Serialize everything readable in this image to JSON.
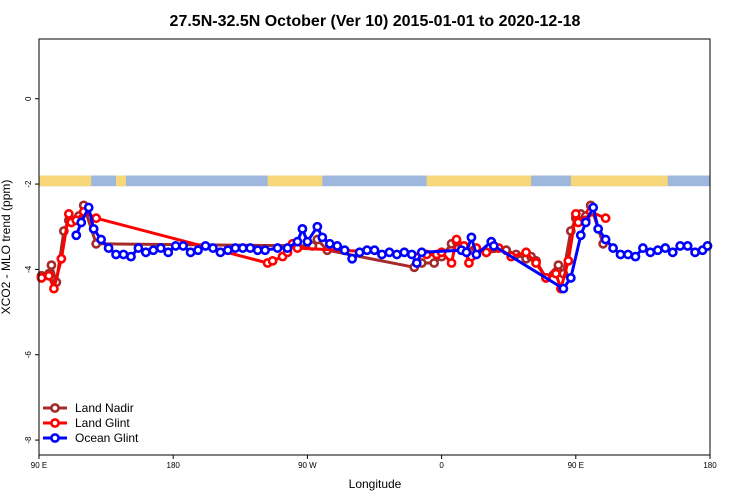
{
  "chart_data": {
    "type": "line",
    "title": "27.5N-32.5N October (Ver 10)   2015-01-01 to 2020-12-18",
    "xlabel": "Longitude",
    "ylabel": "XCO2 - MLO trend (ppm)",
    "xlim": [
      -90,
      180
    ],
    "ylim": [
      -8.35,
      1.4
    ],
    "x_ticks": [
      {
        "value": -90,
        "label": "90 E"
      },
      {
        "value": -36,
        "label": "180"
      },
      {
        "value": 18,
        "label": "90 W"
      },
      {
        "value": 72,
        "label": "0"
      },
      {
        "value": 126,
        "label": "90 E"
      },
      {
        "value": 180,
        "label": "180"
      }
    ],
    "y_ticks": [
      {
        "value": 0,
        "label": "0"
      },
      {
        "value": -2,
        "label": "-2"
      },
      {
        "value": -4,
        "label": "-4"
      },
      {
        "value": -6,
        "label": "-6"
      },
      {
        "value": -8,
        "label": "-8"
      }
    ],
    "surface_band": {
      "y_range": [
        -1.8,
        -2.05
      ],
      "ocean_color": "#9db7dd",
      "land_color": "#f7d77a",
      "land_segments": [
        [
          -90,
          -69
        ],
        [
          -59,
          -55
        ],
        [
          2,
          24
        ],
        [
          66,
          108
        ],
        [
          124,
          163
        ]
      ]
    },
    "legend_position": "bottom-left",
    "series": [
      {
        "name": "Land Nadir",
        "color": "#a52a2a",
        "points": [
          [
            -89,
            -4.15
          ],
          [
            -86,
            -4.1
          ],
          [
            -85,
            -3.9
          ],
          [
            -83,
            -4.3
          ],
          [
            -80,
            -3.1
          ],
          [
            -78,
            -2.85
          ],
          [
            -76,
            -2.85
          ],
          [
            -74,
            -2.75
          ],
          [
            -72,
            -2.5
          ],
          [
            -67,
            -3.4
          ],
          [
            20,
            -3.45
          ],
          [
            22,
            -3.3
          ],
          [
            26,
            -3.55
          ],
          [
            61,
            -3.95
          ],
          [
            64,
            -3.85
          ],
          [
            69,
            -3.85
          ],
          [
            72,
            -3.7
          ],
          [
            76,
            -3.4
          ],
          [
            78,
            -3.35
          ],
          [
            80,
            -3.55
          ],
          [
            85,
            -3.55
          ],
          [
            90,
            -3.6
          ],
          [
            98,
            -3.55
          ],
          [
            102,
            -3.65
          ],
          [
            106,
            -3.75
          ],
          [
            108,
            -3.7
          ],
          [
            110,
            -3.8
          ],
          [
            114,
            -4.2
          ],
          [
            119,
            -3.9
          ],
          [
            121,
            -4.1
          ],
          [
            124,
            -3.1
          ],
          [
            126,
            -2.8
          ],
          [
            128,
            -2.7
          ],
          [
            130,
            -2.75
          ],
          [
            132,
            -2.5
          ],
          [
            137,
            -3.4
          ]
        ]
      },
      {
        "name": "Land Glint",
        "color": "#ff0000",
        "points": [
          [
            -89,
            -4.2
          ],
          [
            -86,
            -4.15
          ],
          [
            -84,
            -4.45
          ],
          [
            -81,
            -3.75
          ],
          [
            -78,
            -2.7
          ],
          [
            -77,
            -2.9
          ],
          [
            -75,
            -2.85
          ],
          [
            -72,
            -2.65
          ],
          [
            -67,
            -2.8
          ],
          [
            2,
            -3.85
          ],
          [
            4,
            -3.8
          ],
          [
            8,
            -3.7
          ],
          [
            10,
            -3.6
          ],
          [
            12,
            -3.4
          ],
          [
            14,
            -3.5
          ],
          [
            66,
            -3.65
          ],
          [
            70,
            -3.65
          ],
          [
            72,
            -3.6
          ],
          [
            76,
            -3.85
          ],
          [
            78,
            -3.3
          ],
          [
            81,
            -3.45
          ],
          [
            83,
            -3.85
          ],
          [
            84,
            -3.7
          ],
          [
            86,
            -3.5
          ],
          [
            90,
            -3.6
          ],
          [
            95,
            -3.5
          ],
          [
            100,
            -3.7
          ],
          [
            106,
            -3.6
          ],
          [
            110,
            -3.85
          ],
          [
            114,
            -4.2
          ],
          [
            118,
            -4.1
          ],
          [
            120,
            -4.45
          ],
          [
            123,
            -3.8
          ],
          [
            126,
            -2.7
          ],
          [
            127,
            -2.9
          ],
          [
            130,
            -2.85
          ],
          [
            132,
            -2.65
          ],
          [
            138,
            -2.8
          ]
        ]
      },
      {
        "name": "Ocean Glint",
        "color": "#0000ff",
        "points": [
          [
            -75,
            -3.2
          ],
          [
            -73,
            -2.9
          ],
          [
            -70,
            -2.55
          ],
          [
            -68,
            -3.05
          ],
          [
            -65,
            -3.3
          ],
          [
            -62,
            -3.5
          ],
          [
            -59,
            -3.65
          ],
          [
            -56,
            -3.65
          ],
          [
            -53,
            -3.7
          ],
          [
            -50,
            -3.5
          ],
          [
            -47,
            -3.6
          ],
          [
            -44,
            -3.55
          ],
          [
            -41,
            -3.5
          ],
          [
            -38,
            -3.6
          ],
          [
            -35,
            -3.45
          ],
          [
            -32,
            -3.45
          ],
          [
            -29,
            -3.6
          ],
          [
            -26,
            -3.55
          ],
          [
            -23,
            -3.45
          ],
          [
            -20,
            -3.5
          ],
          [
            -17,
            -3.6
          ],
          [
            -14,
            -3.55
          ],
          [
            -11,
            -3.5
          ],
          [
            -8,
            -3.5
          ],
          [
            -5,
            -3.5
          ],
          [
            -2,
            -3.55
          ],
          [
            1,
            -3.55
          ],
          [
            6,
            -3.5
          ],
          [
            10,
            -3.5
          ],
          [
            14,
            -3.35
          ],
          [
            16,
            -3.05
          ],
          [
            18,
            -3.35
          ],
          [
            22,
            -3
          ],
          [
            24,
            -3.25
          ],
          [
            27,
            -3.4
          ],
          [
            30,
            -3.45
          ],
          [
            33,
            -3.55
          ],
          [
            36,
            -3.75
          ],
          [
            39,
            -3.6
          ],
          [
            42,
            -3.55
          ],
          [
            45,
            -3.55
          ],
          [
            48,
            -3.65
          ],
          [
            51,
            -3.6
          ],
          [
            54,
            -3.65
          ],
          [
            57,
            -3.6
          ],
          [
            60,
            -3.65
          ],
          [
            62,
            -3.85
          ],
          [
            64,
            -3.6
          ],
          [
            80,
            -3.55
          ],
          [
            82,
            -3.6
          ],
          [
            84,
            -3.25
          ],
          [
            86,
            -3.65
          ],
          [
            92,
            -3.35
          ],
          [
            93,
            -3.45
          ],
          [
            121,
            -4.45
          ],
          [
            124,
            -4.2
          ],
          [
            128,
            -3.2
          ],
          [
            130,
            -2.9
          ],
          [
            133,
            -2.55
          ],
          [
            135,
            -3.05
          ],
          [
            138,
            -3.3
          ],
          [
            141,
            -3.5
          ],
          [
            144,
            -3.65
          ],
          [
            147,
            -3.65
          ],
          [
            150,
            -3.7
          ],
          [
            153,
            -3.5
          ],
          [
            156,
            -3.6
          ],
          [
            159,
            -3.55
          ],
          [
            162,
            -3.5
          ],
          [
            165,
            -3.6
          ],
          [
            168,
            -3.45
          ],
          [
            171,
            -3.45
          ],
          [
            174,
            -3.6
          ],
          [
            177,
            -3.55
          ],
          [
            179,
            -3.45
          ]
        ]
      }
    ]
  }
}
